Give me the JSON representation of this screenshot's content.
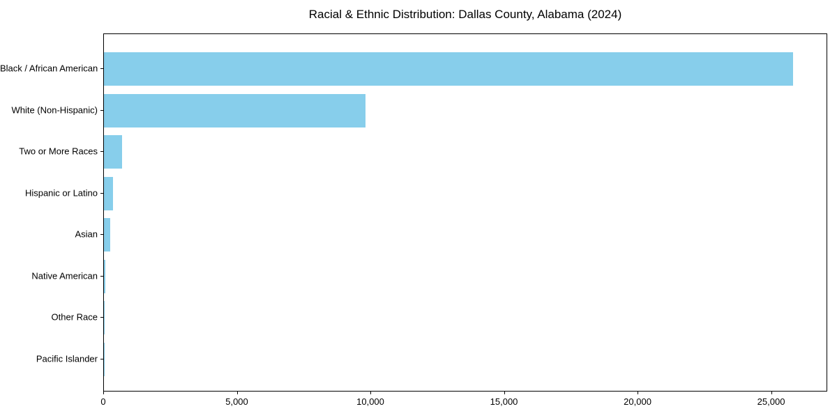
{
  "chart_data": {
    "type": "bar",
    "orientation": "horizontal",
    "title": "Racial & Ethnic Distribution: Dallas County, Alabama (2024)",
    "categories": [
      "Black / African American",
      "White (Non-Hispanic)",
      "Two or More Races",
      "Hispanic or Latino",
      "Asian",
      "Native American",
      "Other Race",
      "Pacific Islander"
    ],
    "values": [
      25800,
      9800,
      680,
      350,
      230,
      50,
      30,
      10
    ],
    "bar_color": "#87CEEB",
    "axis_color": "#000000",
    "text_color": "#000000",
    "xlabel": "",
    "ylabel": "",
    "xlim": [
      0,
      27100
    ],
    "x_ticks": [
      0,
      5000,
      10000,
      15000,
      20000,
      25000
    ],
    "x_tick_labels": [
      "0",
      "5,000",
      "10,000",
      "15,000",
      "20,000",
      "25,000"
    ],
    "grid": false,
    "legend": false
  }
}
